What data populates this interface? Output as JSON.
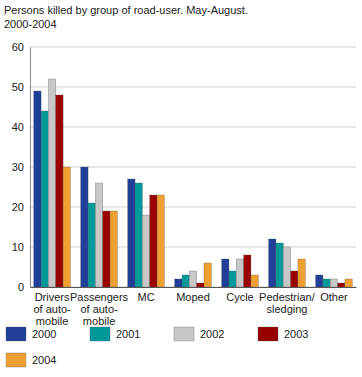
{
  "chart_data": {
    "type": "bar",
    "title": "Persons killed by group of road-user. May-August.\n2000-2004",
    "categories": [
      "Drivers\nof auto-\nmobile",
      "Passengers\nof auto-\nmobile",
      "MC",
      "Moped",
      "Cycle",
      "Pedestrian/\nsledging",
      "Other"
    ],
    "series": [
      {
        "name": "2000",
        "color": "#1f3f99",
        "values": [
          49,
          30,
          27,
          2,
          7,
          12,
          3
        ]
      },
      {
        "name": "2001",
        "color": "#009999",
        "values": [
          44,
          21,
          26,
          3,
          4,
          11,
          2
        ]
      },
      {
        "name": "2002",
        "color": "#c8c8c8",
        "values": [
          52,
          26,
          18,
          4,
          7,
          10,
          2
        ]
      },
      {
        "name": "2003",
        "color": "#990000",
        "values": [
          48,
          19,
          23,
          1,
          8,
          4,
          1
        ]
      },
      {
        "name": "2004",
        "color": "#f0a030",
        "values": [
          30,
          19,
          23,
          6,
          3,
          7,
          2
        ]
      }
    ],
    "ylim": [
      0,
      60
    ],
    "yticks": [
      0,
      10,
      20,
      30,
      40,
      50,
      60
    ],
    "grid": true,
    "legend": "bottom"
  }
}
